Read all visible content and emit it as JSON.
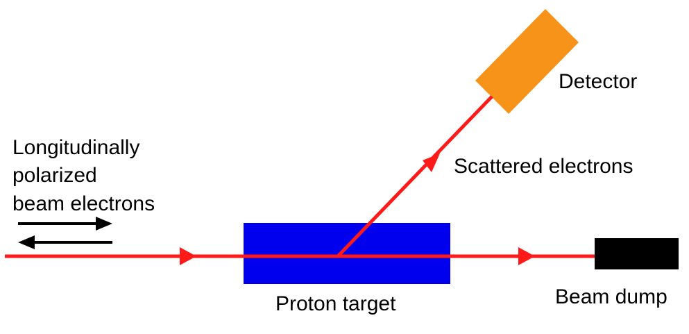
{
  "labels": {
    "incoming_line1": "Longitudinally",
    "incoming_line2": "polarized",
    "incoming_line3": "beam electrons",
    "detector": "Detector",
    "scattered": "Scattered electrons",
    "target": "Proton target",
    "dump": "Beam dump"
  },
  "colors": {
    "beam": "#ff1a1a",
    "target": "#0000ee",
    "detector": "#f8931a",
    "dump": "#000000",
    "polarization_arrows": "#000000",
    "text": "#000000"
  },
  "icons": {
    "polarization_forward": "right-arrow-icon",
    "polarization_backward": "left-arrow-icon",
    "beam_direction": "triangle-arrowhead-icon"
  }
}
